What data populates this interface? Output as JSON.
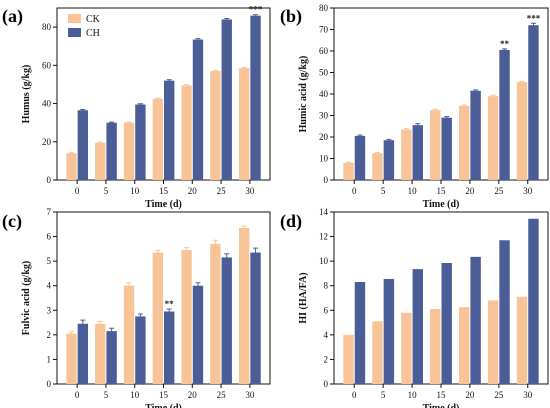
{
  "colors": {
    "CK": "#F8C497",
    "CH": "#4B5D97",
    "axis": "#111111"
  },
  "chart_data": [
    {
      "panel": "(a)",
      "type": "bar",
      "categories": [
        "0",
        "5",
        "10",
        "15",
        "20",
        "25",
        "30"
      ],
      "series": [
        {
          "name": "CK",
          "values": [
            14,
            19.5,
            30,
            42.5,
            49.5,
            57,
            58.5
          ],
          "errors": [
            0.3,
            0.3,
            0.4,
            0.4,
            0.4,
            0.4,
            0.4
          ]
        },
        {
          "name": "CH",
          "values": [
            36.5,
            30,
            39.5,
            52,
            73.5,
            84,
            86
          ],
          "errors": [
            0.4,
            0.3,
            0.4,
            0.5,
            0.5,
            0.5,
            0.5
          ]
        }
      ],
      "xlabel": "Time (d)",
      "ylabel": "Humus (g/kg)",
      "ylim": [
        0,
        90
      ],
      "yticks": [
        "0",
        "20",
        "40",
        "60",
        "80"
      ],
      "legend": [
        "CK",
        "CH"
      ],
      "legend_position": "top-left",
      "annotations": [
        {
          "category": "30",
          "text": "***"
        }
      ]
    },
    {
      "panel": "(b)",
      "type": "bar",
      "categories": [
        "0",
        "5",
        "10",
        "15",
        "20",
        "25",
        "30"
      ],
      "series": [
        {
          "name": "CK",
          "values": [
            8,
            12.5,
            23.5,
            32.5,
            34.5,
            39,
            45.5
          ],
          "errors": [
            0.3,
            0.3,
            0.4,
            0.4,
            0.4,
            0.4,
            0.4
          ]
        },
        {
          "name": "CH",
          "values": [
            20.5,
            18.5,
            25.5,
            29,
            41.5,
            60.5,
            72
          ],
          "errors": [
            0.4,
            0.4,
            0.7,
            0.5,
            0.4,
            0.5,
            0.9
          ]
        }
      ],
      "xlabel": "Time (d)",
      "ylabel": "Humic acid (g/kg)",
      "ylim": [
        0,
        80
      ],
      "yticks": [
        "0",
        "10",
        "20",
        "30",
        "40",
        "50",
        "60",
        "70",
        "80"
      ],
      "annotations": [
        {
          "category": "25",
          "text": "**"
        },
        {
          "category": "30",
          "text": "***"
        }
      ]
    },
    {
      "panel": "(c)",
      "type": "bar",
      "categories": [
        "0",
        "5",
        "10",
        "15",
        "20",
        "25",
        "30"
      ],
      "series": [
        {
          "name": "CK",
          "values": [
            2.05,
            2.45,
            4.0,
            5.35,
            5.45,
            5.7,
            6.35
          ],
          "errors": [
            0.08,
            0.1,
            0.12,
            0.08,
            0.1,
            0.15,
            0.08
          ]
        },
        {
          "name": "CH",
          "values": [
            2.45,
            2.15,
            2.75,
            2.95,
            4.0,
            5.15,
            5.35
          ],
          "errors": [
            0.15,
            0.12,
            0.1,
            0.1,
            0.12,
            0.15,
            0.18
          ]
        }
      ],
      "xlabel": "Time (d)",
      "ylabel": "Fulvic acid (g/kg)",
      "ylim": [
        0,
        7
      ],
      "yticks": [
        "0",
        "1",
        "2",
        "3",
        "4",
        "5",
        "6",
        "7"
      ],
      "annotations": [
        {
          "category": "15",
          "text": "**"
        }
      ]
    },
    {
      "panel": "(d)",
      "type": "bar",
      "categories": [
        "0",
        "5",
        "10",
        "15",
        "20",
        "25",
        "30"
      ],
      "series": [
        {
          "name": "CK",
          "values": [
            4.0,
            5.1,
            5.8,
            6.1,
            6.25,
            6.8,
            7.1
          ],
          "errors": [
            0,
            0,
            0,
            0,
            0,
            0,
            0
          ]
        },
        {
          "name": "CH",
          "values": [
            8.3,
            8.55,
            9.35,
            9.85,
            10.35,
            11.7,
            13.45
          ],
          "errors": [
            0,
            0,
            0,
            0,
            0,
            0,
            0
          ]
        }
      ],
      "xlabel": "Time (d)",
      "ylabel": "HI (HA/FA)",
      "ylim": [
        0,
        14
      ],
      "yticks": [
        "0",
        "2",
        "4",
        "6",
        "8",
        "10",
        "12",
        "14"
      ],
      "annotations": []
    }
  ]
}
